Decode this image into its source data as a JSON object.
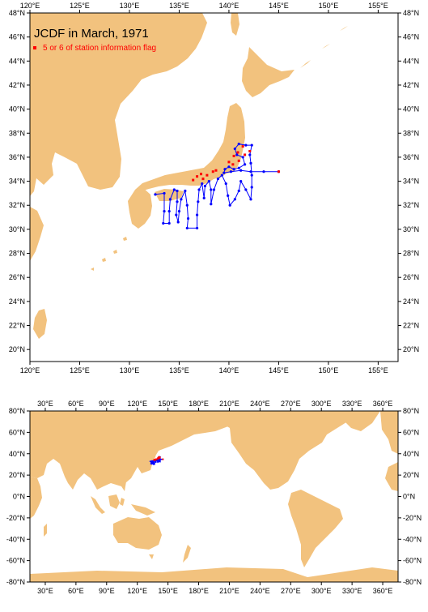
{
  "colors": {
    "land": "#f2c27e",
    "track": "#0000ff",
    "flag": "#ff0000",
    "frame": "#000000"
  },
  "regional_map": {
    "title": "JCDF in March, 1971",
    "legend_label": "5 or 6 of station information flag",
    "lon_range": [
      120,
      157
    ],
    "lat_range": [
      19,
      48
    ],
    "lon_ticks": [
      "120°E",
      "125°E",
      "130°E",
      "135°E",
      "140°E",
      "145°E",
      "150°E",
      "155°E"
    ],
    "lat_ticks": [
      "20°N",
      "22°N",
      "24°N",
      "26°N",
      "28°N",
      "30°N",
      "32°N",
      "34°N",
      "36°N",
      "38°N",
      "40°N",
      "42°N",
      "44°N",
      "46°N",
      "48°N"
    ]
  },
  "global_map": {
    "lon_range": [
      15,
      375
    ],
    "lat_range": [
      -80,
      80
    ],
    "lon_ticks": [
      "30°E",
      "60°E",
      "90°E",
      "120°E",
      "150°E",
      "180°E",
      "210°E",
      "240°E",
      "270°E",
      "300°E",
      "330°E",
      "360°E"
    ],
    "lat_ticks": [
      "80°N",
      "60°N",
      "40°N",
      "20°N",
      "0°N",
      "-20°N",
      "-40°N",
      "-60°N",
      "-80°N"
    ]
  },
  "chart_data": {
    "type": "scatter",
    "track": [
      [
        132.6,
        32.9
      ],
      [
        133.5,
        33.0
      ],
      [
        133.5,
        31.5
      ],
      [
        133.4,
        30.5
      ],
      [
        134.0,
        30.5
      ],
      [
        134.0,
        31.5
      ],
      [
        134.1,
        32.5
      ],
      [
        134.5,
        33.3
      ],
      [
        134.8,
        33.2
      ],
      [
        134.8,
        32.3
      ],
      [
        134.7,
        31.2
      ],
      [
        134.9,
        30.6
      ],
      [
        135.0,
        31.5
      ],
      [
        135.2,
        32.5
      ],
      [
        135.6,
        33.2
      ],
      [
        135.8,
        32.0
      ],
      [
        135.9,
        30.9
      ],
      [
        135.8,
        30.1
      ],
      [
        136.8,
        30.1
      ],
      [
        136.8,
        31.2
      ],
      [
        136.9,
        32.3
      ],
      [
        137.0,
        33.3
      ],
      [
        137.3,
        33.8
      ],
      [
        137.5,
        32.6
      ],
      [
        137.6,
        33.6
      ],
      [
        138.0,
        34.0
      ],
      [
        138.2,
        33.3
      ],
      [
        138.2,
        32.1
      ],
      [
        138.5,
        33.3
      ],
      [
        138.9,
        34.2
      ],
      [
        139.3,
        34.5
      ],
      [
        139.7,
        33.8
      ],
      [
        139.9,
        32.8
      ],
      [
        140.1,
        32.0
      ],
      [
        140.6,
        32.5
      ],
      [
        141.0,
        33.2
      ],
      [
        141.2,
        34.0
      ],
      [
        141.7,
        33.3
      ],
      [
        142.2,
        32.5
      ],
      [
        142.3,
        33.5
      ],
      [
        142.3,
        34.5
      ],
      [
        142.2,
        35.5
      ],
      [
        142.1,
        36.2
      ],
      [
        142.3,
        37.0
      ],
      [
        141.7,
        37.0
      ],
      [
        141.0,
        37.1
      ],
      [
        140.6,
        36.7
      ],
      [
        140.8,
        36.2
      ],
      [
        141.4,
        36.0
      ],
      [
        141.6,
        35.4
      ],
      [
        141.0,
        35.1
      ],
      [
        140.5,
        35.0
      ],
      [
        140.0,
        35.2
      ],
      [
        139.6,
        35.0
      ],
      [
        139.5,
        34.7
      ],
      [
        140.2,
        34.8
      ],
      [
        141.2,
        34.9
      ],
      [
        142.2,
        34.8
      ],
      [
        143.5,
        34.8
      ],
      [
        145.0,
        34.8
      ]
    ],
    "flagged": [
      [
        136.4,
        34.1
      ],
      [
        136.8,
        34.4
      ],
      [
        137.2,
        34.6
      ],
      [
        137.8,
        34.5
      ],
      [
        138.4,
        34.8
      ],
      [
        138.7,
        34.9
      ],
      [
        140.0,
        35.6
      ],
      [
        140.5,
        36.1
      ],
      [
        140.9,
        36.4
      ],
      [
        141.4,
        36.9
      ],
      [
        141.0,
        35.7
      ],
      [
        142.1,
        36.5
      ],
      [
        141.6,
        36.2
      ],
      [
        140.4,
        35.4
      ],
      [
        137.4,
        34.2
      ],
      [
        145.0,
        34.8
      ]
    ]
  }
}
